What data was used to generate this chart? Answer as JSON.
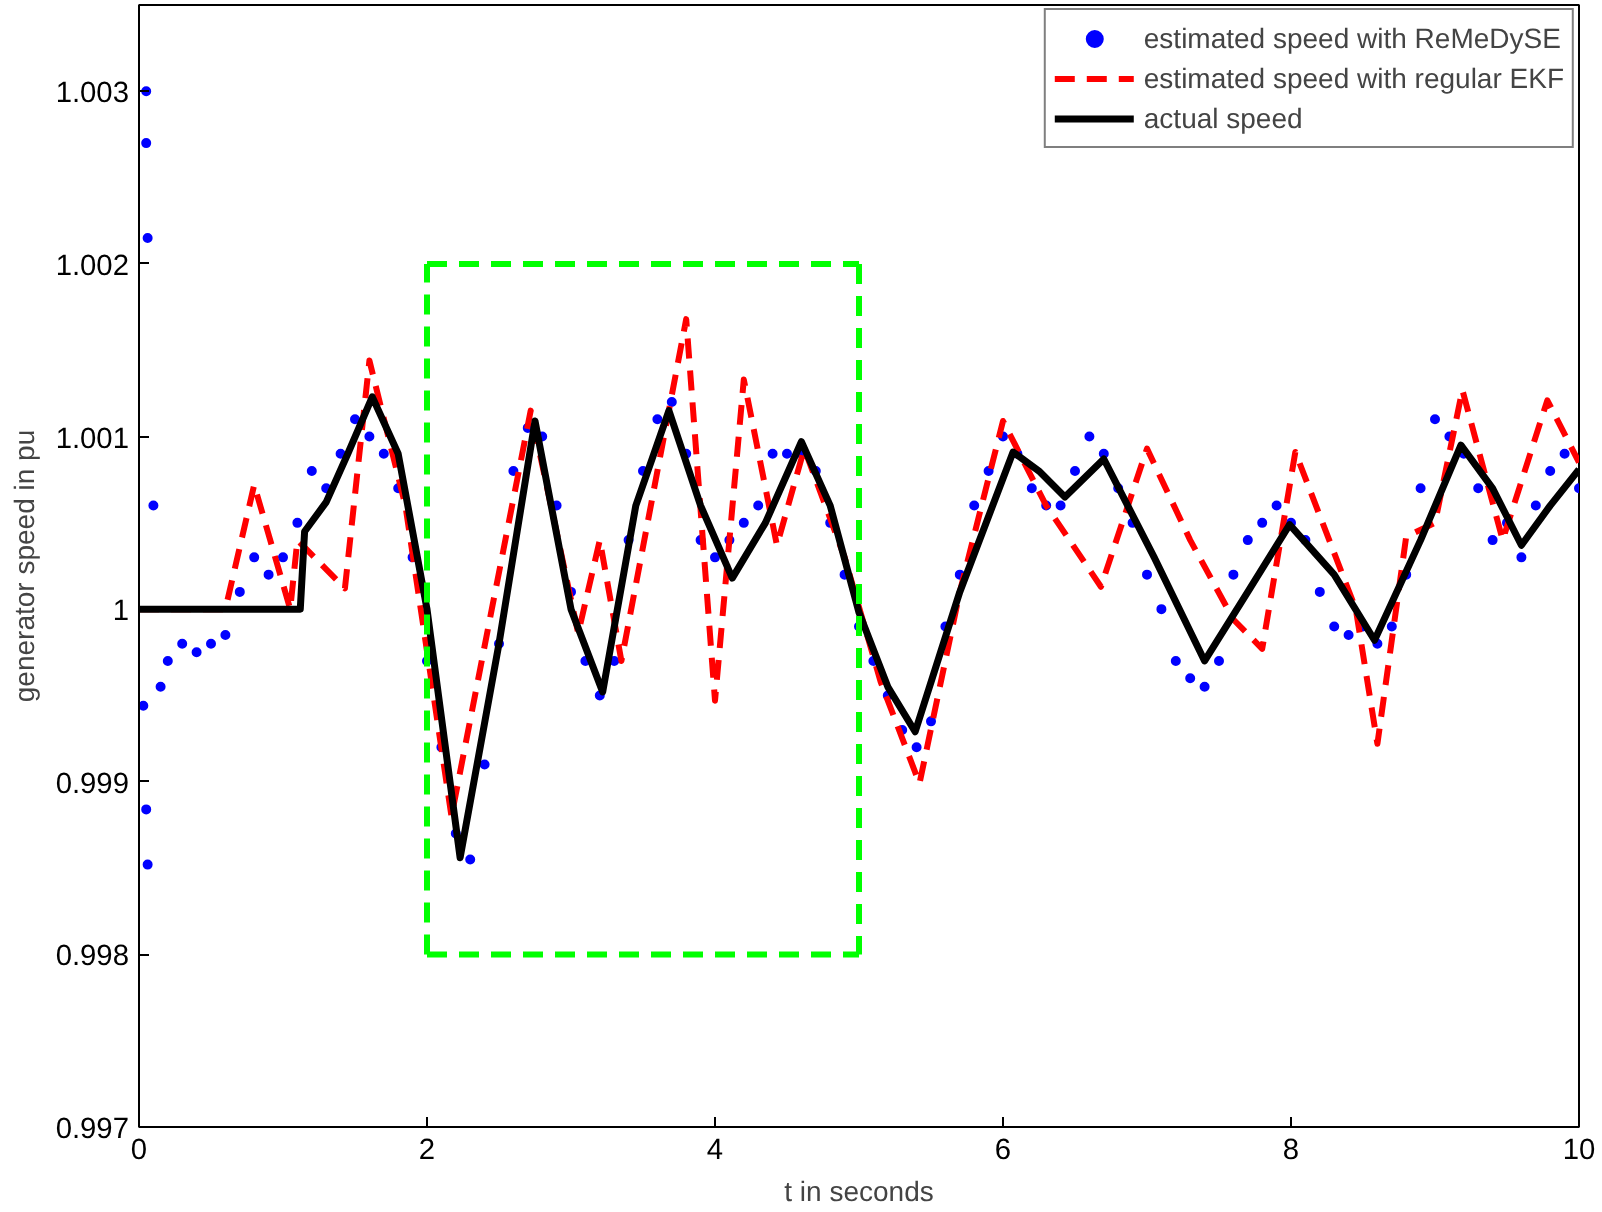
{
  "chart_data": {
    "type": "line",
    "xlabel": "t in seconds",
    "ylabel": "generator speed in pu",
    "xlim": [
      0,
      10
    ],
    "ylim": [
      0.997,
      1.0035
    ],
    "xticks": [
      0,
      2,
      4,
      6,
      8,
      10
    ],
    "yticks": [
      {
        "value": 0.997,
        "label": "0.997"
      },
      {
        "value": 0.998,
        "label": "0.998"
      },
      {
        "value": 0.999,
        "label": "0.999"
      },
      {
        "value": 1,
        "label": "1"
      },
      {
        "value": 1.001,
        "label": "1.001"
      },
      {
        "value": 1.002,
        "label": "1.002"
      },
      {
        "value": 1.003,
        "label": "1.003"
      }
    ],
    "grid": false,
    "legend": "top right",
    "series": [
      {
        "name": "estimated speed with ReMeDySE",
        "type": "scatter",
        "marker": "circle",
        "color": "#0000ff",
        "x": [
          0.05,
          0.05,
          0.06,
          0.03,
          0.05,
          0.06,
          0.1,
          0.15,
          0.2,
          0.3,
          0.4,
          0.5,
          0.6,
          0.7,
          0.8,
          0.9,
          1.0,
          1.1,
          1.2,
          1.3,
          1.4,
          1.5,
          1.6,
          1.7,
          1.8,
          1.9,
          2.0,
          2.1,
          2.2,
          2.3,
          2.4,
          2.5,
          2.6,
          2.7,
          2.8,
          2.9,
          3.0,
          3.1,
          3.2,
          3.3,
          3.4,
          3.5,
          3.6,
          3.7,
          3.8,
          3.9,
          4.0,
          4.1,
          4.2,
          4.3,
          4.4,
          4.5,
          4.6,
          4.7,
          4.8,
          4.9,
          5.0,
          5.1,
          5.2,
          5.3,
          5.4,
          5.5,
          5.6,
          5.7,
          5.8,
          5.9,
          6.0,
          6.1,
          6.2,
          6.3,
          6.4,
          6.5,
          6.6,
          6.7,
          6.8,
          6.9,
          7.0,
          7.1,
          7.2,
          7.3,
          7.4,
          7.5,
          7.6,
          7.7,
          7.8,
          7.9,
          8.0,
          8.1,
          8.2,
          8.3,
          8.4,
          8.5,
          8.6,
          8.7,
          8.8,
          8.9,
          9.0,
          9.1,
          9.2,
          9.3,
          9.4,
          9.5,
          9.6,
          9.7,
          9.8,
          9.9,
          10
        ],
        "values": [
          1.003,
          1.0027,
          1.00215,
          0.99944,
          0.99884,
          0.99852,
          1.0006,
          0.99955,
          0.9997,
          0.9998,
          0.99975,
          0.9998,
          0.99985,
          1.0001,
          1.0003,
          1.0002,
          1.0003,
          1.0005,
          1.0008,
          1.0007,
          1.0009,
          1.0011,
          1.001,
          1.0009,
          1.0007,
          1.0003,
          0.9997,
          0.9992,
          0.9987,
          0.99855,
          0.9991,
          0.9998,
          1.0008,
          1.00105,
          1.001,
          1.0006,
          1.0001,
          0.9997,
          0.9995,
          0.9997,
          1.0004,
          1.0008,
          1.0011,
          1.0012,
          1.0009,
          1.0004,
          1.0003,
          1.0004,
          1.0005,
          1.0006,
          1.0009,
          1.0009,
          1.0009,
          1.0008,
          1.0005,
          1.0002,
          0.9999,
          0.9997,
          0.9995,
          0.9993,
          0.9992,
          0.99935,
          0.9999,
          1.0002,
          1.0006,
          1.0008,
          1.001,
          1.0009,
          1.0007,
          1.0006,
          1.0006,
          1.0008,
          1.001,
          1.0009,
          1.0007,
          1.0005,
          1.0002,
          1.0,
          0.9997,
          0.9996,
          0.99955,
          0.9997,
          1.0002,
          1.0004,
          1.0005,
          1.0006,
          1.0005,
          1.0004,
          1.0001,
          0.9999,
          0.99985,
          0.9999,
          0.9998,
          0.9999,
          1.0002,
          1.0007,
          1.0011,
          1.001,
          1.0009,
          1.0007,
          1.0004,
          1.0005,
          1.0003,
          1.0006,
          1.0008,
          1.0009,
          1.0007
        ]
      },
      {
        "name": "estimated speed with regular EKF",
        "line_style": "dashed",
        "color": "#ff0000",
        "x": [
          0,
          0.6,
          0.8,
          1.05,
          1.1,
          1.43,
          1.6,
          1.85,
          2.17,
          2.45,
          2.72,
          3.05,
          3.2,
          3.35,
          3.6,
          3.8,
          4.0,
          4.2,
          4.43,
          4.62,
          4.9,
          5.15,
          5.42,
          5.7,
          6.0,
          6.3,
          6.68,
          7.0,
          7.3,
          7.6,
          7.8,
          8.03,
          8.45,
          8.6,
          8.8,
          9.0,
          9.19,
          9.47,
          9.78,
          10
        ],
        "values": [
          1,
          1,
          1.00072,
          1.0,
          1.0004,
          1.00012,
          1.00144,
          1.0006,
          0.9988,
          1.0,
          1.00115,
          0.99986,
          1.0004,
          0.9997,
          1.0008,
          1.00168,
          0.99947,
          1.00133,
          1.00037,
          1.00093,
          1.0003,
          0.99958,
          0.99899,
          1.0001,
          1.00109,
          1.0006,
          1.00013,
          1.00093,
          1.0004,
          0.99994,
          0.99977,
          1.00091,
          1.0,
          0.99922,
          1.00042,
          1.0005,
          1.00127,
          1.0004,
          1.00121,
          1.00085
        ]
      },
      {
        "name": "actual speed",
        "line_style": "solid",
        "color": "#000000",
        "x": [
          0,
          1.12,
          1.15,
          1.3,
          1.45,
          1.62,
          1.8,
          2.0,
          2.23,
          2.5,
          2.75,
          3.0,
          3.22,
          3.45,
          3.68,
          3.9,
          4.12,
          4.35,
          4.6,
          4.8,
          5.0,
          5.2,
          5.39,
          5.7,
          6.07,
          6.25,
          6.43,
          6.7,
          7.05,
          7.4,
          7.7,
          7.99,
          8.3,
          8.58,
          8.9,
          9.18,
          9.4,
          9.6,
          9.8,
          10
        ],
        "values": [
          1,
          1,
          1.00045,
          1.00062,
          1.0009,
          1.00123,
          1.0009,
          1.0,
          0.99856,
          0.9998,
          1.00109,
          1.0,
          0.99952,
          1.0006,
          1.00115,
          1.0006,
          1.00018,
          1.0005,
          1.00097,
          1.0006,
          0.99998,
          0.99955,
          0.99929,
          1.0001,
          1.00091,
          1.0008,
          1.00065,
          1.00087,
          1.0003,
          0.9997,
          1.0001,
          1.00049,
          1.0002,
          0.99982,
          1.0004,
          1.00095,
          1.0007,
          1.00037,
          1.0006,
          1.00081
        ]
      },
      {
        "line_style": "dashed",
        "color": "#00ff00",
        "x": [
          2,
          5
        ],
        "values": [
          1.002,
          1.002
        ]
      },
      {
        "line_style": "dashed",
        "color": "#00ff00",
        "x": [
          5,
          5
        ],
        "values": [
          1.002,
          0.998
        ]
      },
      {
        "line_style": "dashed",
        "color": "#00ff00",
        "x": [
          2,
          5
        ],
        "values": [
          0.998,
          0.998
        ]
      },
      {
        "line_style": "dashed",
        "color": "#00ff00",
        "x": [
          2,
          2
        ],
        "values": [
          0.998,
          1.002
        ]
      }
    ]
  }
}
